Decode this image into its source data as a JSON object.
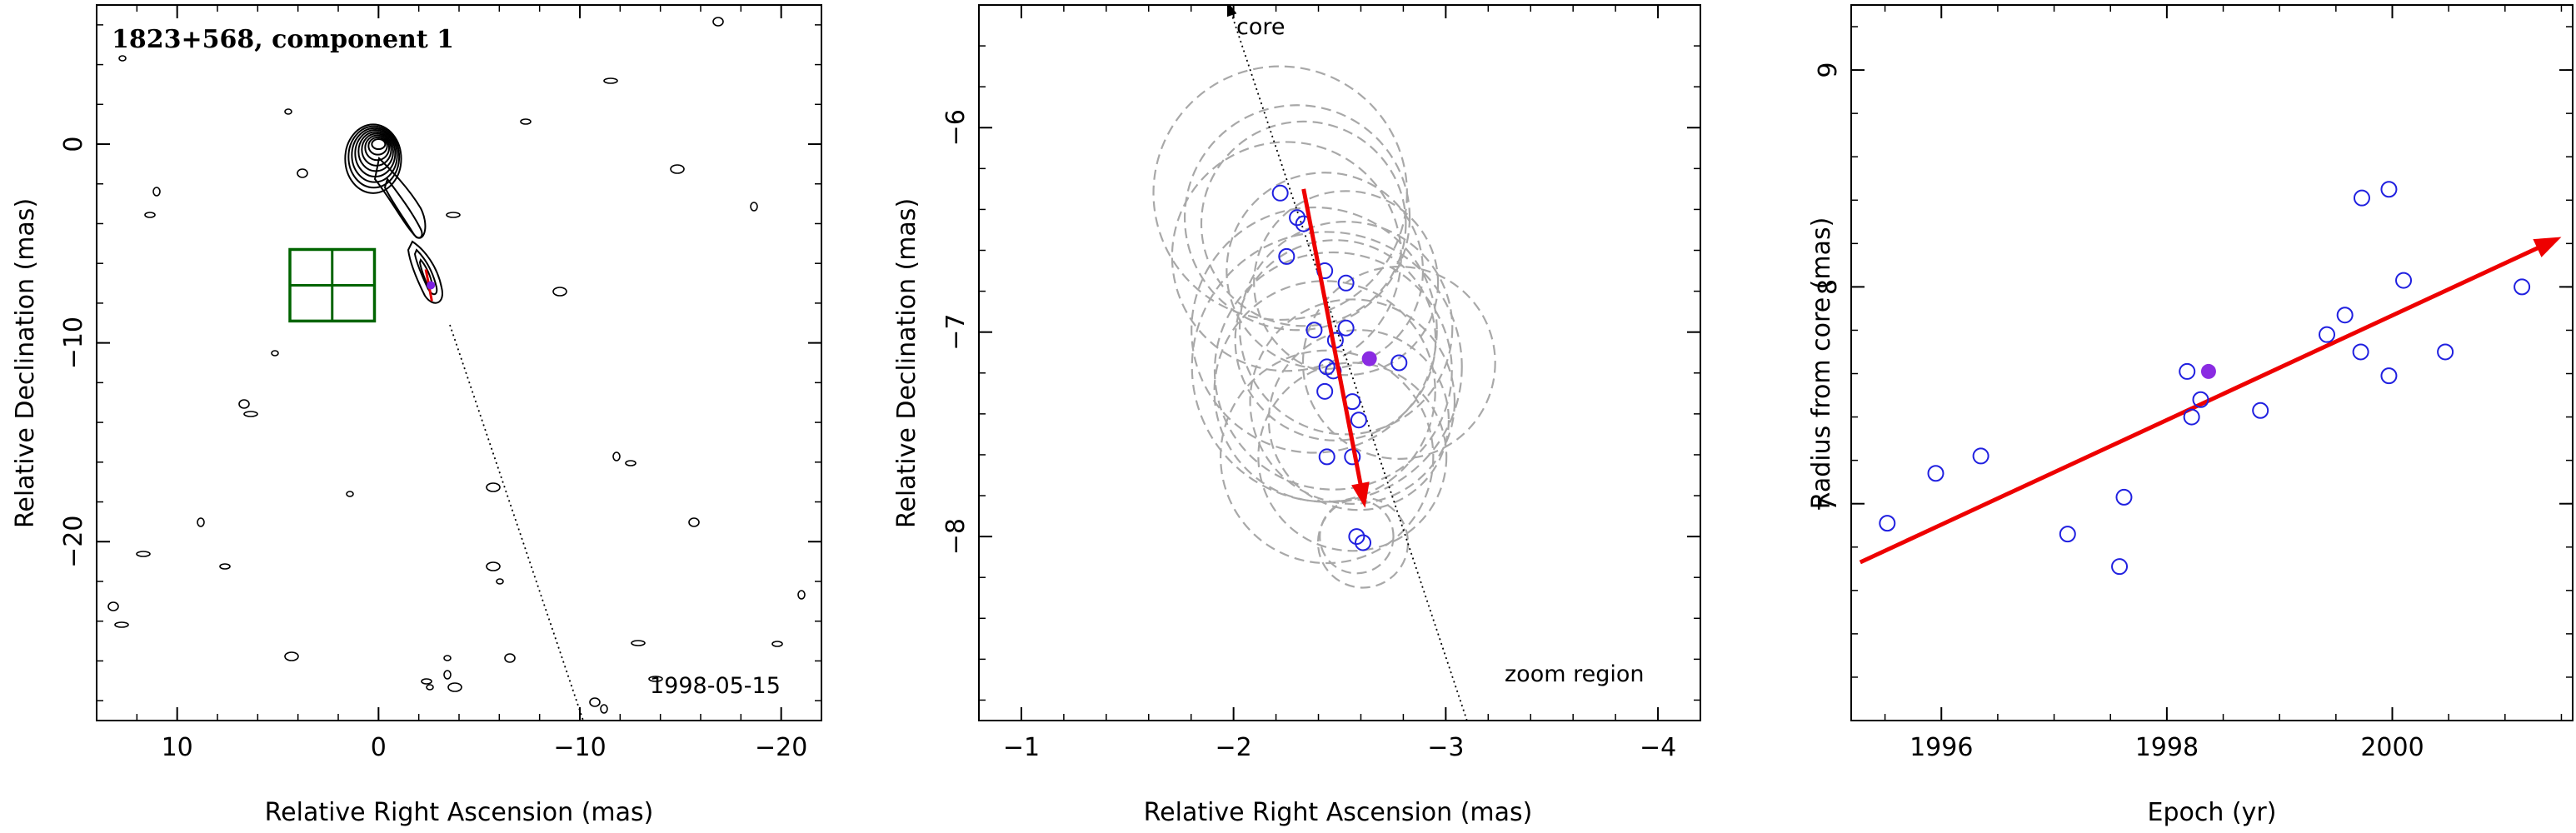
{
  "chart_data": [
    {
      "type": "contour",
      "title": "1823+568, component 1",
      "date_label": "1998-05-15",
      "xlabel": "Relative Right Ascension (mas)",
      "ylabel": "Relative Declination (mas)",
      "xlim": [
        14,
        -22
      ],
      "ylim": [
        -29,
        7
      ],
      "xticks": [
        10,
        0,
        -10,
        -20
      ],
      "yticks": [
        0,
        -10,
        -20
      ],
      "core_position": [
        0,
        0
      ],
      "zoom_box": {
        "x": [
          4.4,
          0.2
        ],
        "y": [
          -5.3,
          -8.9
        ]
      },
      "component_position": [
        -2.6,
        -7.1
      ]
    },
    {
      "type": "scatter",
      "xlabel": "Relative Right Ascension (mas)",
      "ylabel": "Relative Declination (mas)",
      "xlim": [
        -0.8,
        -4.2
      ],
      "ylim": [
        -8.9,
        -5.4
      ],
      "xticks": [
        -1,
        -2,
        -3,
        -4
      ],
      "yticks": [
        -6,
        -7,
        -8
      ],
      "annotations": [
        "core",
        "zoom region"
      ],
      "points": [
        [
          -2.22,
          -6.32
        ],
        [
          -2.3,
          -6.44
        ],
        [
          -2.33,
          -6.47
        ],
        [
          -2.25,
          -6.63
        ],
        [
          -2.43,
          -6.7
        ],
        [
          -2.53,
          -6.76
        ],
        [
          -2.38,
          -6.99
        ],
        [
          -2.53,
          -6.98
        ],
        [
          -2.48,
          -7.04
        ],
        [
          -2.78,
          -7.15
        ],
        [
          -2.44,
          -7.17
        ],
        [
          -2.47,
          -7.19
        ],
        [
          -2.43,
          -7.29
        ],
        [
          -2.56,
          -7.34
        ],
        [
          -2.59,
          -7.43
        ],
        [
          -2.44,
          -7.61
        ],
        [
          -2.56,
          -7.61
        ],
        [
          -2.58,
          -8.0
        ],
        [
          -2.61,
          -8.03
        ]
      ],
      "mean_point": [
        -2.64,
        -7.13
      ],
      "motion_vector": {
        "from": [
          -2.33,
          -6.3
        ],
        "to": [
          -2.62,
          -7.86
        ]
      }
    },
    {
      "type": "scatter",
      "xlabel": "Epoch (yr)",
      "ylabel": "Radius from core (mas)",
      "xlim": [
        1995.2,
        2001.6
      ],
      "ylim": [
        6.0,
        9.3
      ],
      "xticks": [
        1996,
        1998,
        2000
      ],
      "yticks": [
        7,
        8,
        9
      ],
      "points": [
        [
          1995.52,
          6.91
        ],
        [
          1995.95,
          7.14
        ],
        [
          1996.35,
          7.22
        ],
        [
          1997.12,
          6.86
        ],
        [
          1997.62,
          7.03
        ],
        [
          1997.58,
          6.71
        ],
        [
          1998.18,
          7.61
        ],
        [
          1998.22,
          7.4
        ],
        [
          1998.3,
          7.48
        ],
        [
          1998.83,
          7.43
        ],
        [
          1999.42,
          7.78
        ],
        [
          1999.58,
          7.87
        ],
        [
          1999.72,
          7.7
        ],
        [
          1999.73,
          8.41
        ],
        [
          1999.97,
          8.45
        ],
        [
          1999.97,
          7.59
        ],
        [
          2000.1,
          8.03
        ],
        [
          2000.47,
          7.7
        ],
        [
          2001.15,
          8.0
        ]
      ],
      "mean_point": [
        1998.37,
        7.61
      ],
      "trend_vector": {
        "from": [
          1995.28,
          6.73
        ],
        "to": [
          2001.5,
          8.23
        ]
      }
    }
  ]
}
